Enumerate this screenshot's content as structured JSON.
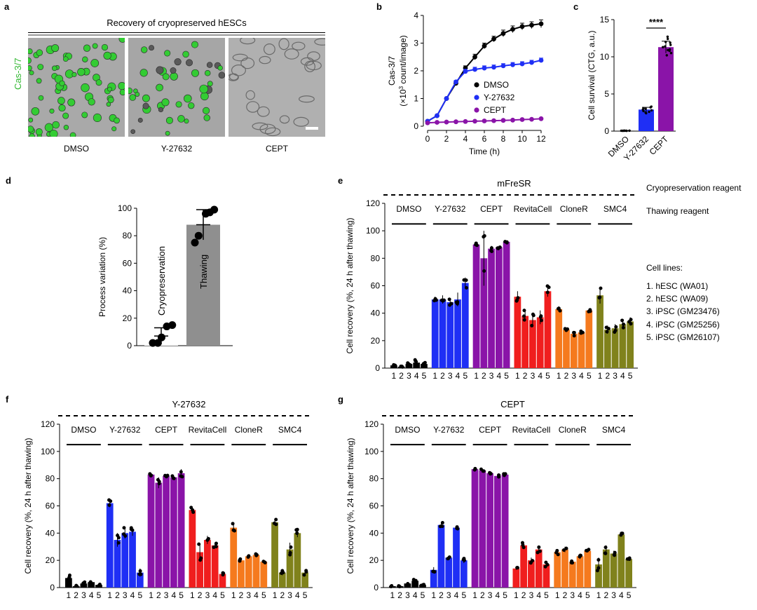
{
  "panel_letters": {
    "a": "a",
    "b": "b",
    "c": "c",
    "d": "d",
    "e": "e",
    "f": "f",
    "g": "g"
  },
  "colors": {
    "DMSO": "#000000",
    "Y-27632": "#1f2ff5",
    "CEPT": "#8a14a8",
    "RevitaCell": "#f01e1e",
    "CloneR": "#f57a1e",
    "SMC4": "#80821c",
    "Thawing": "#8f8f8f",
    "cas_green": "#33cc33"
  },
  "panel_a": {
    "title": "Recovery of cryopreserved hESCs",
    "stain_label": "Cas-3/7",
    "conditions": [
      "DMSO",
      "Y-27632",
      "CEPT"
    ]
  },
  "chart_data": [
    {
      "id": "b",
      "type": "line",
      "xlabel": "Time (h)",
      "ylabel_line1": "Cas-3/7",
      "ylabel_pre": "(×10",
      "ylabel_sup": "3",
      "ylabel_post": " count/image)",
      "xlim": [
        0,
        12
      ],
      "ylim": [
        0,
        4
      ],
      "xticks": [
        0,
        2,
        4,
        6,
        8,
        10,
        12
      ],
      "yticks": [
        0,
        1,
        2,
        3,
        4
      ],
      "series": [
        {
          "name": "DMSO",
          "color": "#000000",
          "x": [
            0,
            1,
            2,
            3,
            4,
            5,
            6,
            7,
            8,
            9,
            10,
            11,
            12
          ],
          "y": [
            0.18,
            0.38,
            1.0,
            1.55,
            2.1,
            2.5,
            2.9,
            3.15,
            3.35,
            3.5,
            3.6,
            3.65,
            3.7
          ],
          "err": [
            0.03,
            0.03,
            0.04,
            0.05,
            0.08,
            0.1,
            0.1,
            0.1,
            0.12,
            0.12,
            0.12,
            0.12,
            0.14
          ]
        },
        {
          "name": "Y-27632",
          "color": "#1f2ff5",
          "x": [
            0,
            1,
            2,
            3,
            4,
            5,
            6,
            7,
            8,
            9,
            10,
            11,
            12
          ],
          "y": [
            0.18,
            0.38,
            1.0,
            1.6,
            1.98,
            2.05,
            2.1,
            2.13,
            2.18,
            2.22,
            2.25,
            2.3,
            2.38
          ],
          "err": [
            0.03,
            0.03,
            0.04,
            0.05,
            0.08,
            0.08,
            0.08,
            0.08,
            0.08,
            0.08,
            0.08,
            0.08,
            0.08
          ]
        },
        {
          "name": "CEPT",
          "color": "#8a14a8",
          "x": [
            0,
            1,
            2,
            3,
            4,
            5,
            6,
            7,
            8,
            9,
            10,
            11,
            12
          ],
          "y": [
            0.12,
            0.14,
            0.15,
            0.16,
            0.17,
            0.18,
            0.19,
            0.2,
            0.21,
            0.22,
            0.24,
            0.25,
            0.27
          ],
          "err": [
            0.01,
            0.01,
            0.01,
            0.01,
            0.01,
            0.01,
            0.01,
            0.01,
            0.01,
            0.01,
            0.01,
            0.01,
            0.01
          ]
        }
      ],
      "legend": [
        "DMSO",
        "Y-27632",
        "CEPT"
      ]
    },
    {
      "id": "c",
      "type": "bar",
      "ylabel": "Cell survival (CTG, a.u.)",
      "ylim": [
        0,
        15
      ],
      "yticks": [
        0,
        5,
        10,
        15
      ],
      "categories": [
        "DMSO",
        "Y-27632",
        "CEPT"
      ],
      "values": [
        0.05,
        2.9,
        11.3
      ],
      "errors": [
        0.02,
        0.3,
        0.8
      ],
      "points": [
        [
          0.04,
          0.05,
          0.06,
          0.05,
          0.04,
          0.05,
          0.06,
          0.05
        ],
        [
          2.4,
          2.6,
          2.8,
          2.9,
          3.0,
          3.1,
          3.2,
          2.7,
          2.5,
          3.3
        ],
        [
          10.2,
          10.5,
          10.8,
          11.0,
          11.3,
          11.6,
          12.0,
          12.4,
          12.7,
          11.9,
          10.9,
          11.4
        ]
      ],
      "significance": "****"
    },
    {
      "id": "d",
      "type": "bar",
      "ylabel": "Process variation (%)",
      "ylim": [
        0,
        100
      ],
      "yticks": [
        0,
        20,
        40,
        60,
        80,
        100
      ],
      "categories": [
        "Cryopreservation",
        "Thawing"
      ],
      "values": [
        7,
        88
      ],
      "errors": [
        6,
        11
      ],
      "points": [
        [
          2,
          2,
          6,
          14,
          15
        ],
        [
          75,
          80,
          96,
          97,
          99
        ]
      ]
    },
    {
      "id": "e",
      "type": "bar",
      "cryo_reagent": "mFreSR",
      "ylabel": "Cell recovery (%, 24 h after thawing)",
      "ylim": [
        0,
        120
      ],
      "yticks": [
        0,
        20,
        40,
        60,
        80,
        100,
        120
      ],
      "groups": [
        "DMSO",
        "Y-27632",
        "CEPT",
        "RevitaCell",
        "CloneR",
        "SMC4"
      ],
      "lines": [
        "1",
        "2",
        "3",
        "4",
        "5"
      ],
      "series": [
        {
          "name": "DMSO",
          "values": [
            2,
            1,
            3,
            4,
            3
          ],
          "errors": [
            0.5,
            0.5,
            1,
            2,
            1
          ]
        },
        {
          "name": "Y-27632",
          "values": [
            50,
            50,
            48,
            50,
            62
          ],
          "errors": [
            2,
            3,
            3,
            5,
            4
          ]
        },
        {
          "name": "CEPT",
          "values": [
            90,
            80,
            87,
            88,
            92
          ],
          "errors": [
            1,
            20,
            2,
            1,
            1
          ]
        },
        {
          "name": "RevitaCell",
          "values": [
            52,
            38,
            35,
            37,
            56
          ],
          "errors": [
            4,
            4,
            5,
            5,
            4
          ]
        },
        {
          "name": "CloneR",
          "values": [
            43,
            28,
            25,
            26,
            42
          ],
          "errors": [
            2,
            1,
            2,
            1,
            1
          ]
        },
        {
          "name": "SMC4",
          "values": [
            53,
            28,
            29,
            32,
            34
          ],
          "errors": [
            6,
            3,
            3,
            3,
            3
          ]
        }
      ]
    },
    {
      "id": "f",
      "type": "bar",
      "cryo_reagent": "Y-27632",
      "ylabel": "Cell recovery (%, 24 h after thawing)",
      "ylim": [
        0,
        120
      ],
      "yticks": [
        0,
        20,
        40,
        60,
        80,
        100,
        120
      ],
      "groups": [
        "DMSO",
        "Y-27632",
        "CEPT",
        "RevitaCell",
        "CloneR",
        "SMC4"
      ],
      "lines": [
        "1",
        "2",
        "3",
        "4",
        "5"
      ],
      "series": [
        {
          "name": "DMSO",
          "values": [
            7,
            1,
            3,
            4,
            2
          ],
          "errors": [
            2,
            0.5,
            1,
            1,
            0.5
          ]
        },
        {
          "name": "Y-27632",
          "values": [
            62,
            35,
            40,
            41,
            11
          ],
          "errors": [
            3,
            5,
            4,
            3,
            3
          ]
        },
        {
          "name": "CEPT",
          "values": [
            83,
            77,
            82,
            81,
            84
          ],
          "errors": [
            1,
            4,
            1,
            1,
            3
          ]
        },
        {
          "name": "RevitaCell",
          "values": [
            57,
            26,
            35,
            31,
            10
          ],
          "errors": [
            2,
            6,
            3,
            2,
            1
          ]
        },
        {
          "name": "CloneR",
          "values": [
            44,
            20,
            23,
            24,
            19
          ],
          "errors": [
            3,
            1,
            1,
            1,
            1
          ]
        },
        {
          "name": "SMC4",
          "values": [
            48,
            11,
            28,
            40,
            11
          ],
          "errors": [
            2,
            2,
            5,
            3,
            2
          ]
        }
      ]
    },
    {
      "id": "g",
      "type": "bar",
      "cryo_reagent": "CEPT",
      "ylabel": "Cell recovery (%, 24 h after thawing)",
      "ylim": [
        0,
        120
      ],
      "yticks": [
        0,
        20,
        40,
        60,
        80,
        100,
        120
      ],
      "groups": [
        "DMSO",
        "Y-27632",
        "CEPT",
        "RevitaCell",
        "CloneR",
        "SMC4"
      ],
      "lines": [
        "1",
        "2",
        "3",
        "4",
        "5"
      ],
      "series": [
        {
          "name": "DMSO",
          "values": [
            1,
            1,
            3,
            5,
            2
          ],
          "errors": [
            0.5,
            0.5,
            1,
            1,
            0.5
          ]
        },
        {
          "name": "Y-27632",
          "values": [
            13,
            46,
            22,
            44,
            20
          ],
          "errors": [
            2,
            2,
            1,
            1,
            2
          ]
        },
        {
          "name": "CEPT",
          "values": [
            87,
            86,
            84,
            82,
            83
          ],
          "errors": [
            1,
            1,
            1,
            1,
            1
          ]
        },
        {
          "name": "RevitaCell",
          "values": [
            14,
            31,
            20,
            28,
            17
          ],
          "errors": [
            1,
            2,
            2,
            3,
            2
          ]
        },
        {
          "name": "CloneR",
          "values": [
            26,
            28,
            19,
            23,
            27
          ],
          "errors": [
            2,
            2,
            1,
            2,
            1
          ]
        },
        {
          "name": "SMC4",
          "values": [
            17,
            28,
            25,
            39,
            21
          ],
          "errors": [
            5,
            3,
            2,
            1,
            1
          ]
        }
      ]
    }
  ],
  "panel_e_side": {
    "cryo_label": "Cryopreservation reagent",
    "thaw_label": "Thawing reagent",
    "cell_lines_title": "Cell lines:",
    "cell_lines": [
      "1. hESC (WA01)",
      "2. hESC (WA09)",
      "3. iPSC (GM23476)",
      "4. iPSC (GM25256)",
      "5. iPSC (GM26107)"
    ]
  }
}
